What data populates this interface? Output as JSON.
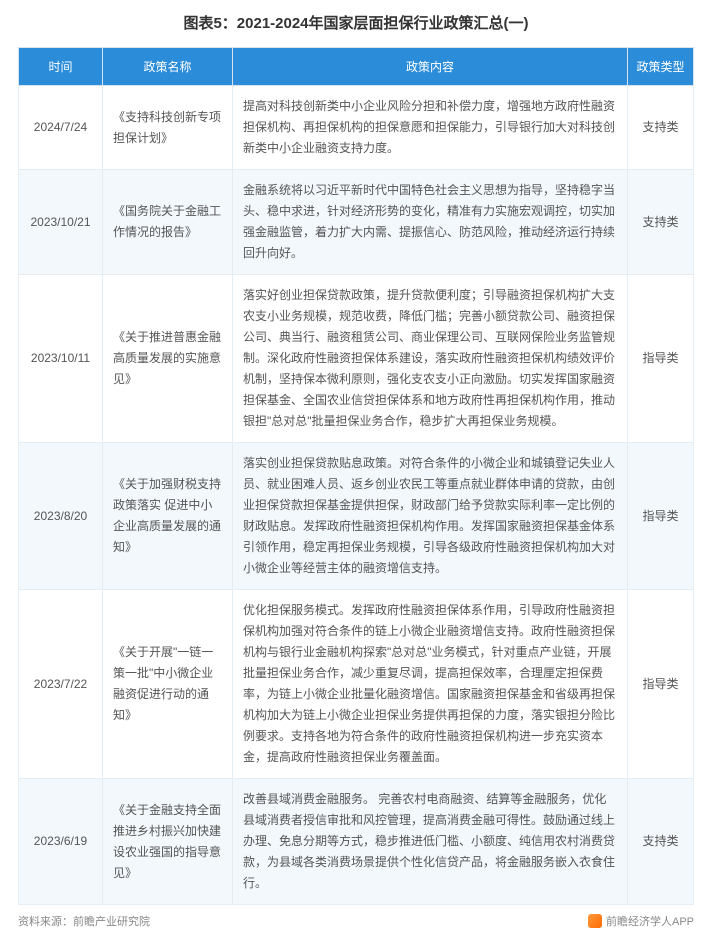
{
  "title": "图表5：2021-2024年国家层面担保行业政策汇总(一)",
  "title_fontsize": 15,
  "title_color": "#333333",
  "header_bg": "#2b8cd9",
  "header_color": "#ffffff",
  "row_alt_bg": "#f3f8fd",
  "row_bg": "#ffffff",
  "border_color": "#e4ecf4",
  "body_fontsize": 12,
  "cell_color": "#555555",
  "col_widths": [
    "84px",
    "130px",
    "auto",
    "66px"
  ],
  "columns": [
    "时间",
    "政策名称",
    "政策内容",
    "政策类型"
  ],
  "rows": [
    {
      "date": "2024/7/24",
      "name": "《支持科技创新专项担保计划》",
      "content": "提高对科技创新类中小企业风险分担和补偿力度，增强地方政府性融资担保机构、再担保机构的担保意愿和担保能力，引导银行加大对科技创新类中小企业融资支持力度。",
      "type": "支持类"
    },
    {
      "date": "2023/10/21",
      "name": "《国务院关于金融工作情况的报告》",
      "content": "金融系统将以习近平新时代中国特色社会主义思想为指导，坚持稳字当头、稳中求进，针对经济形势的变化，精准有力实施宏观调控，切实加强金融监管，着力扩大内需、提振信心、防范风险，推动经济运行持续回升向好。",
      "type": "支持类"
    },
    {
      "date": "2023/10/11",
      "name": "《关于推进普惠金融高质量发展的实施意见》",
      "content": "落实好创业担保贷款政策，提升贷款便利度；引导融资担保机构扩大支农支小业务规模，规范收费，降低门槛；完善小额贷款公司、融资担保公司、典当行、融资租赁公司、商业保理公司、互联网保险业务监管规制。深化政府性融资担保体系建设，落实政府性融资担保机构绩效评价机制，坚持保本微利原则，强化支农支小正向激励。切实发挥国家融资担保基金、全国农业信贷担保体系和地方政府性再担保机构作用，推动银担\"总对总\"批量担保业务合作，稳步扩大再担保业务规模。",
      "type": "指导类"
    },
    {
      "date": "2023/8/20",
      "name": "《关于加强财税支持政策落实 促进中小企业高质量发展的通知》",
      "content": "落实创业担保贷款贴息政策。对符合条件的小微企业和城镇登记失业人员、就业困难人员、返乡创业农民工等重点就业群体申请的贷款，由创业担保贷款担保基金提供担保，财政部门给予贷款实际利率一定比例的财政贴息。发挥政府性融资担保机构作用。发挥国家融资担保基金体系引领作用，稳定再担保业务规模，引导各级政府性融资担保机构加大对小微企业等经营主体的融资增信支持。",
      "type": "指导类"
    },
    {
      "date": "2023/7/22",
      "name": "《关于开展\"一链一策一批\"中小微企业融资促进行动的通知》",
      "content": "优化担保服务模式。发挥政府性融资担保体系作用，引导政府性融资担保机构加强对符合条件的链上小微企业融资增信支持。政府性融资担保机构与银行业金融机构探索\"总对总\"业务模式，针对重点产业链，开展批量担保业务合作，减少重复尽调，提高担保效率，合理厘定担保费率，为链上小微企业批量化融资增信。国家融资担保基金和省级再担保机构加大为链上小微企业担保业务提供再担保的力度，落实银担分险比例要求。支持各地为符合条件的政府性融资担保机构进一步充实资本金，提高政府性融资担保业务覆盖面。",
      "type": "指导类"
    },
    {
      "date": "2023/6/19",
      "name": "《关于金融支持全面推进乡村振兴加快建设农业强国的指导意见》",
      "content": "改善县域消费金融服务。  完善农村电商融资、结算等金融服务，优化县域消费者授信审批和风控管理，提高消费金融可得性。鼓励通过线上办理、免息分期等方式，稳步推进低门槛、小额度、纯信用农村消费贷款，为县域各类消费场景提供个性化信贷产品，将金融服务嵌入衣食住行。",
      "type": "支持类"
    }
  ],
  "footer_left": "资料来源：前瞻产业研究院",
  "footer_right": "前瞻经济学人APP",
  "footer_fontsize": 11,
  "footer_color": "#888888"
}
